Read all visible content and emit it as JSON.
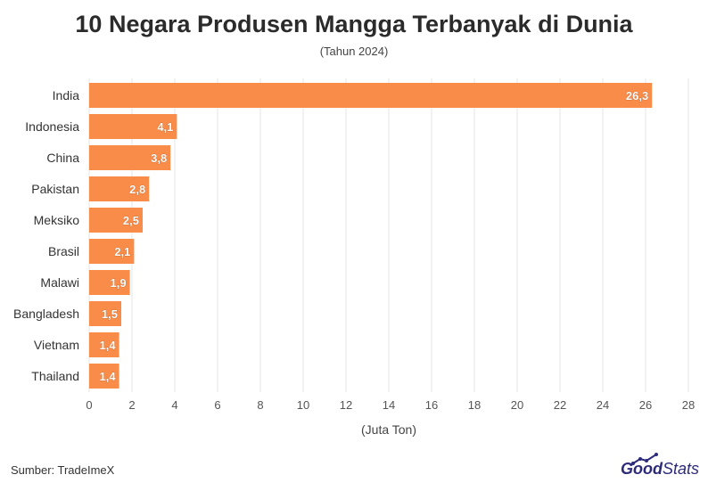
{
  "chart_data": {
    "type": "bar",
    "orientation": "horizontal",
    "title": "10 Negara Produsen Mangga Terbanyak di Dunia",
    "subtitle": "(Tahun 2024)",
    "xlabel": "(Juta Ton)",
    "ylabel": "",
    "categories": [
      "India",
      "Indonesia",
      "China",
      "Pakistan",
      "Meksiko",
      "Brasil",
      "Malawi",
      "Bangladesh",
      "Vietnam",
      "Thailand"
    ],
    "values": [
      26.3,
      4.1,
      3.8,
      2.8,
      2.5,
      2.1,
      1.9,
      1.5,
      1.4,
      1.4
    ],
    "value_labels": [
      "26,3",
      "4,1",
      "3,8",
      "2,8",
      "2,5",
      "2,1",
      "1,9",
      "1,5",
      "1,4",
      "1,4"
    ],
    "xlim": [
      0,
      28
    ],
    "xticks": [
      0,
      2,
      4,
      6,
      8,
      10,
      12,
      14,
      16,
      18,
      20,
      22,
      24,
      26,
      28
    ],
    "grid": true,
    "legend": "none",
    "bar_color": "#f98c49"
  },
  "footer": {
    "source": "Sumber: TradeImeX",
    "logo_good": "Good",
    "logo_stats": "Stats"
  },
  "colors": {
    "grid": "#e6e6e6",
    "axis_text": "#555555",
    "label_text": "#333333",
    "logo": "#2d2a7a"
  }
}
